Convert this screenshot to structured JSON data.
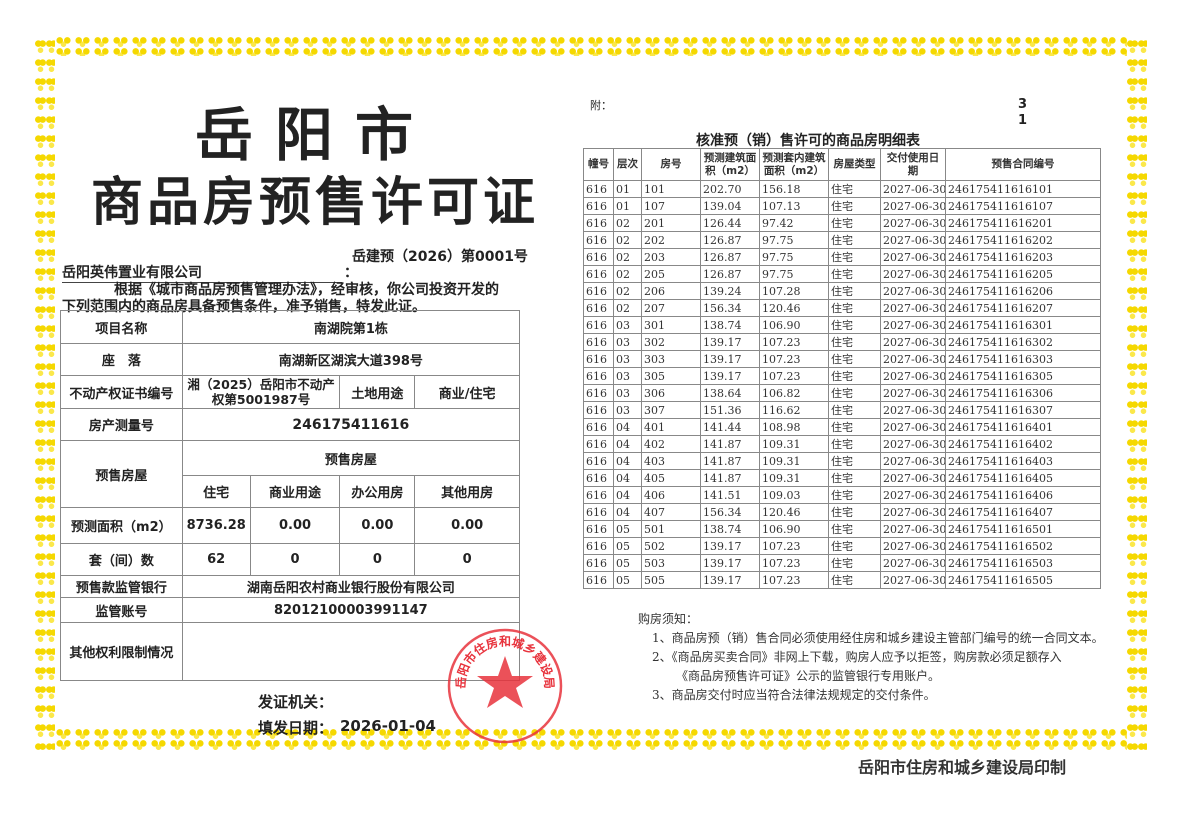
{
  "title_line1": "岳阳市",
  "title_line2": "商品房预售许可证",
  "permit_number": "岳建预（2026）第0001号",
  "company": "岳阳英伟置业有限公司",
  "company_colon": "：",
  "intro_line1": "根据《城市商品房预售管理办法》，经审核，你公司投资开发的",
  "intro_line2": "下列范围内的商品房具备预售条件，准予销售，特发此证。",
  "left_table": {
    "project_name_label": "项目名称",
    "project_name": "南湖院第1栋",
    "location_label": "座　落",
    "location": "南湖新区湖滨大道398号",
    "cert_label": "不动产权证书编号",
    "cert_value": "湘（2025）岳阳市不动产权第5001987号",
    "land_use_label": "土地用途",
    "land_use": "商业/住宅",
    "survey_label": "房产测量号",
    "survey_value": "246175411616",
    "presale_label": "预售房屋",
    "presale_header": "预售房屋",
    "types": [
      "住宅",
      "商业用途",
      "办公用房",
      "其他用房"
    ],
    "area_label": "预测面积（m2）",
    "areas": [
      "8736.28",
      "0.00",
      "0.00",
      "0.00"
    ],
    "units_label": "套（间）数",
    "units": [
      "62",
      "0",
      "0",
      "0"
    ],
    "bank_label": "预售款监管银行",
    "bank": "湖南岳阳农村商业银行股份有限公司",
    "account_label": "监管账号",
    "account": "82012100003991147",
    "other_label": "其他权利限制情况",
    "other": ""
  },
  "issuer_label": "发证机关：",
  "issue_date_label": "填发日期：",
  "issue_date": "2026-01-04",
  "seal_text": "岳阳市住房和城乡建设局",
  "attachment_label": "附：",
  "page_total": "3",
  "page_current": "1",
  "detail_title": "核准预（销）售许可的商品房明细表",
  "detail_headers": [
    "幢号",
    "层次",
    "房号",
    "预测建筑面积（m2）",
    "预测套内建筑面积（m2）",
    "房屋类型",
    "交付使用日期",
    "预售合同编号"
  ],
  "detail_rows": [
    [
      "616",
      "01",
      "101",
      "202.70",
      "156.18",
      "住宅",
      "2027-06-30",
      "246175411616101"
    ],
    [
      "616",
      "01",
      "107",
      "139.04",
      "107.13",
      "住宅",
      "2027-06-30",
      "246175411616107"
    ],
    [
      "616",
      "02",
      "201",
      "126.44",
      "97.42",
      "住宅",
      "2027-06-30",
      "246175411616201"
    ],
    [
      "616",
      "02",
      "202",
      "126.87",
      "97.75",
      "住宅",
      "2027-06-30",
      "246175411616202"
    ],
    [
      "616",
      "02",
      "203",
      "126.87",
      "97.75",
      "住宅",
      "2027-06-30",
      "246175411616203"
    ],
    [
      "616",
      "02",
      "205",
      "126.87",
      "97.75",
      "住宅",
      "2027-06-30",
      "246175411616205"
    ],
    [
      "616",
      "02",
      "206",
      "139.24",
      "107.28",
      "住宅",
      "2027-06-30",
      "246175411616206"
    ],
    [
      "616",
      "02",
      "207",
      "156.34",
      "120.46",
      "住宅",
      "2027-06-30",
      "246175411616207"
    ],
    [
      "616",
      "03",
      "301",
      "138.74",
      "106.90",
      "住宅",
      "2027-06-30",
      "246175411616301"
    ],
    [
      "616",
      "03",
      "302",
      "139.17",
      "107.23",
      "住宅",
      "2027-06-30",
      "246175411616302"
    ],
    [
      "616",
      "03",
      "303",
      "139.17",
      "107.23",
      "住宅",
      "2027-06-30",
      "246175411616303"
    ],
    [
      "616",
      "03",
      "305",
      "139.17",
      "107.23",
      "住宅",
      "2027-06-30",
      "246175411616305"
    ],
    [
      "616",
      "03",
      "306",
      "138.64",
      "106.82",
      "住宅",
      "2027-06-30",
      "246175411616306"
    ],
    [
      "616",
      "03",
      "307",
      "151.36",
      "116.62",
      "住宅",
      "2027-06-30",
      "246175411616307"
    ],
    [
      "616",
      "04",
      "401",
      "141.44",
      "108.98",
      "住宅",
      "2027-06-30",
      "246175411616401"
    ],
    [
      "616",
      "04",
      "402",
      "141.87",
      "109.31",
      "住宅",
      "2027-06-30",
      "246175411616402"
    ],
    [
      "616",
      "04",
      "403",
      "141.87",
      "109.31",
      "住宅",
      "2027-06-30",
      "246175411616403"
    ],
    [
      "616",
      "04",
      "405",
      "141.87",
      "109.31",
      "住宅",
      "2027-06-30",
      "246175411616405"
    ],
    [
      "616",
      "04",
      "406",
      "141.51",
      "109.03",
      "住宅",
      "2027-06-30",
      "246175411616406"
    ],
    [
      "616",
      "04",
      "407",
      "156.34",
      "120.46",
      "住宅",
      "2027-06-30",
      "246175411616407"
    ],
    [
      "616",
      "05",
      "501",
      "138.74",
      "106.90",
      "住宅",
      "2027-06-30",
      "246175411616501"
    ],
    [
      "616",
      "05",
      "502",
      "139.17",
      "107.23",
      "住宅",
      "2027-06-30",
      "246175411616502"
    ],
    [
      "616",
      "05",
      "503",
      "139.17",
      "107.23",
      "住宅",
      "2027-06-30",
      "246175411616503"
    ],
    [
      "616",
      "05",
      "505",
      "139.17",
      "107.23",
      "住宅",
      "2027-06-30",
      "246175411616505"
    ]
  ],
  "notes": {
    "title": "购房须知：",
    "item1": "1、商品房预（销）售合同必须使用经住房和城乡建设主管部门编号的统一合同文本。",
    "item2": "2、《商品房买卖合同》非网上下载，购房人应予以拒签，购房款必须足额存入",
    "item2_cont": "《商品房预售许可证》公示的监管银行专用账户。",
    "item3": "3、商品房交付时应当符合法律法规规定的交付条件。"
  },
  "printer": "岳阳市住房和城乡建设局印制",
  "colors": {
    "border": "#f5d800",
    "seal": "#e8323c",
    "text": "#222222"
  }
}
